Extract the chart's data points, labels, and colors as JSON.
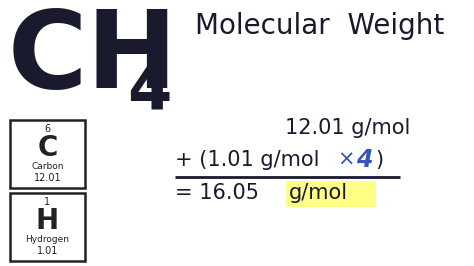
{
  "bg_color": "#ffffff",
  "formula_color": "#1a1a2e",
  "title_color": "#1a1a2e",
  "title_text": "Molecular  Weight",
  "ch4_main": "CH",
  "ch4_sub": "4",
  "element_C_number": "6",
  "element_C_symbol": "C",
  "element_C_name": "Carbon",
  "element_C_mass": "12.01",
  "element_H_number": "1",
  "element_H_symbol": "H",
  "element_H_name": "Hydrogen",
  "element_H_mass": "1.01",
  "line1": "12.01 g/mol",
  "line2_prefix": "+ (1.01 g/mol ",
  "line2_x": "×",
  "line2_4": "4",
  "line2_suffix": ")",
  "line3_prefix": "= 16.05 ",
  "line3_highlight": "g/mol",
  "highlight_color": "#ffff88",
  "blue_color": "#3355bb",
  "text_color": "#1a1a2e",
  "line_color": "#1a1a2e",
  "box_color": "#222222",
  "fig_w": 4.74,
  "fig_h": 2.66,
  "dpi": 100
}
